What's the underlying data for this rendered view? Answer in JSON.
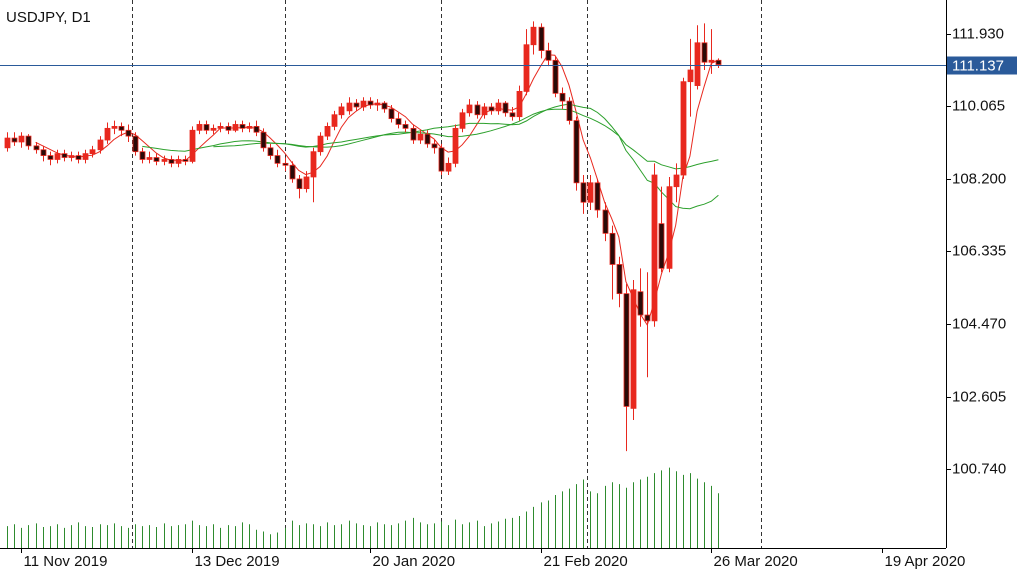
{
  "chart_data": {
    "type": "candlestick",
    "title": "USDJPY, D1",
    "ylim": [
      98.71,
      112.8
    ],
    "yticks": [
      {
        "value": 111.93,
        "label": "111.930"
      },
      110.065,
      {
        "value": 108.2,
        "label": "108.200"
      },
      106.335,
      {
        "value": 104.47,
        "label": "104.470"
      },
      102.605,
      {
        "value": 100.74,
        "label": "100.740"
      }
    ],
    "xlim": [
      -1,
      132
    ],
    "xticks": [
      {
        "value": 2,
        "label": "11 Nov 2019"
      },
      {
        "value": 26,
        "label": "13 Dec 2019"
      },
      {
        "value": 51,
        "label": "20 Jan 2020"
      },
      {
        "value": 75,
        "label": "21 Feb 2020"
      },
      {
        "value": 99,
        "label": "26 Mar 2020"
      },
      {
        "value": 123,
        "label": "19 Apr 2020"
      }
    ],
    "vgrid": [
      17.5,
      39,
      61,
      81.5,
      106
    ],
    "up_color": "#e8281e",
    "down_color": "#2a0a08",
    "wick_color": "#e8281e",
    "open": [
      109.0,
      109.25,
      109.15,
      109.3,
      109.05,
      108.95,
      108.8,
      108.7,
      108.85,
      108.75,
      108.8,
      108.7,
      108.85,
      108.95,
      109.2,
      109.5,
      109.55,
      109.45,
      109.3,
      108.9,
      108.7,
      108.75,
      108.65,
      108.7,
      108.6,
      108.7,
      108.65,
      109.45,
      109.6,
      109.45,
      109.5,
      109.55,
      109.45,
      109.6,
      109.5,
      109.55,
      109.4,
      109.0,
      108.8,
      108.6,
      108.55,
      108.2,
      107.95,
      108.25,
      108.9,
      109.3,
      109.55,
      109.85,
      109.95,
      110.15,
      110.05,
      110.2,
      110.1,
      110.15,
      110.0,
      109.75,
      109.6,
      109.5,
      109.2,
      109.35,
      109.1,
      109.0,
      108.4,
      108.6,
      109.5,
      109.9,
      110.1,
      109.85,
      110.05,
      109.95,
      110.15,
      109.9,
      109.8,
      110.45,
      111.65,
      112.1,
      111.5,
      111.25,
      110.4,
      110.2,
      109.7,
      108.1,
      107.6,
      108.1,
      107.4,
      106.8,
      106.0,
      105.25,
      102.3,
      105.3,
      104.7,
      104.55,
      107.05,
      105.9,
      108.0,
      108.3,
      110.7,
      110.6,
      111.7,
      111.2,
      111.25
    ],
    "high": [
      109.4,
      109.4,
      109.4,
      109.35,
      109.15,
      109.05,
      108.9,
      108.95,
      108.95,
      108.9,
      108.9,
      108.95,
      109.05,
      109.3,
      109.65,
      109.7,
      109.65,
      109.6,
      109.4,
      109.0,
      108.9,
      108.85,
      108.8,
      108.8,
      108.8,
      108.8,
      109.55,
      109.7,
      109.7,
      109.6,
      109.65,
      109.65,
      109.7,
      109.7,
      109.65,
      109.7,
      109.5,
      109.1,
      108.95,
      108.75,
      108.65,
      108.3,
      108.4,
      109.0,
      109.4,
      109.65,
      109.95,
      110.15,
      110.3,
      110.25,
      110.3,
      110.3,
      110.25,
      110.2,
      110.1,
      109.9,
      109.7,
      109.6,
      109.45,
      109.45,
      109.2,
      109.1,
      108.75,
      109.6,
      110.0,
      110.25,
      110.2,
      110.15,
      110.15,
      110.25,
      110.2,
      110.05,
      110.6,
      112.05,
      112.25,
      112.2,
      111.7,
      111.35,
      110.55,
      110.3,
      109.8,
      108.3,
      108.3,
      108.2,
      107.6,
      107.0,
      106.2,
      105.5,
      105.6,
      105.9,
      105.8,
      108.6,
      108.0,
      108.25,
      108.6,
      110.8,
      111.8,
      112.15,
      112.2,
      112.05,
      111.3
    ],
    "low": [
      108.9,
      109.05,
      109.0,
      108.95,
      108.85,
      108.65,
      108.55,
      108.6,
      108.65,
      108.65,
      108.6,
      108.6,
      108.75,
      108.85,
      109.1,
      109.35,
      109.3,
      109.15,
      108.8,
      108.6,
      108.6,
      108.55,
      108.55,
      108.5,
      108.5,
      108.55,
      108.6,
      109.35,
      109.35,
      109.35,
      109.4,
      109.35,
      109.4,
      109.4,
      109.4,
      109.3,
      108.9,
      108.7,
      108.5,
      108.4,
      108.1,
      107.7,
      107.85,
      107.6,
      108.8,
      109.2,
      109.45,
      109.75,
      109.85,
      109.95,
      109.95,
      110.0,
      109.95,
      109.9,
      109.65,
      109.5,
      109.4,
      109.1,
      109.1,
      109.0,
      108.85,
      108.3,
      108.3,
      108.5,
      109.4,
      109.8,
      109.75,
      109.75,
      109.85,
      109.85,
      109.8,
      109.7,
      109.7,
      110.35,
      111.4,
      111.3,
      111.1,
      110.3,
      110.0,
      109.6,
      107.9,
      107.3,
      107.4,
      107.2,
      106.6,
      105.1,
      104.9,
      101.2,
      102.0,
      104.4,
      103.1,
      104.4,
      105.8,
      105.8,
      107.6,
      108.2,
      109.8,
      110.5,
      111.0,
      110.9,
      111.05
    ],
    "close": [
      109.25,
      109.15,
      109.3,
      109.05,
      108.95,
      108.8,
      108.7,
      108.85,
      108.75,
      108.8,
      108.7,
      108.85,
      108.95,
      109.2,
      109.5,
      109.55,
      109.45,
      109.3,
      108.9,
      108.7,
      108.75,
      108.65,
      108.7,
      108.6,
      108.7,
      108.65,
      109.45,
      109.6,
      109.45,
      109.5,
      109.55,
      109.45,
      109.6,
      109.5,
      109.55,
      109.4,
      109.0,
      108.8,
      108.6,
      108.55,
      108.2,
      107.95,
      108.25,
      108.9,
      109.3,
      109.55,
      109.85,
      110.05,
      110.15,
      110.05,
      110.2,
      110.1,
      110.15,
      110.0,
      109.75,
      109.6,
      109.5,
      109.2,
      109.35,
      109.1,
      109.0,
      108.4,
      108.6,
      109.5,
      109.9,
      110.1,
      109.85,
      110.05,
      109.95,
      110.15,
      109.9,
      109.8,
      110.45,
      111.65,
      112.1,
      111.5,
      111.25,
      110.4,
      110.2,
      109.7,
      108.1,
      107.6,
      108.1,
      107.4,
      106.8,
      106.0,
      105.25,
      102.35,
      105.35,
      104.7,
      104.55,
      108.3,
      105.9,
      108.0,
      108.3,
      110.7,
      111.0,
      111.7,
      111.2,
      111.25,
      111.14
    ],
    "volume_color": "#2e8b2e",
    "volume_lim": [
      0,
      600
    ],
    "volume": [
      24,
      26,
      22,
      25,
      27,
      23,
      24,
      26,
      22,
      25,
      28,
      24,
      23,
      26,
      25,
      27,
      24,
      22,
      26,
      24,
      25,
      23,
      27,
      24,
      25,
      26,
      30,
      25,
      24,
      26,
      22,
      25,
      24,
      28,
      26,
      20,
      18,
      15,
      17,
      22,
      30,
      25,
      27,
      26,
      24,
      28,
      25,
      26,
      30,
      27,
      25,
      24,
      28,
      26,
      25,
      27,
      30,
      33,
      28,
      26,
      27,
      29,
      25,
      31,
      26,
      28,
      30,
      24,
      27,
      29,
      32,
      33,
      35,
      40,
      45,
      50,
      52,
      58,
      62,
      65,
      70,
      75,
      62,
      60,
      68,
      72,
      70,
      66,
      72,
      75,
      78,
      82,
      85,
      88,
      84,
      80,
      82,
      76,
      72,
      68,
      60
    ],
    "moving_averages": [
      {
        "period": 5,
        "color": "#e8281e"
      },
      {
        "period": 20,
        "color": "#2ca02c"
      },
      {
        "period": 30,
        "color": "#2ca02c"
      }
    ],
    "last_price": 111.137,
    "last_price_color": "#2a5a9a"
  }
}
